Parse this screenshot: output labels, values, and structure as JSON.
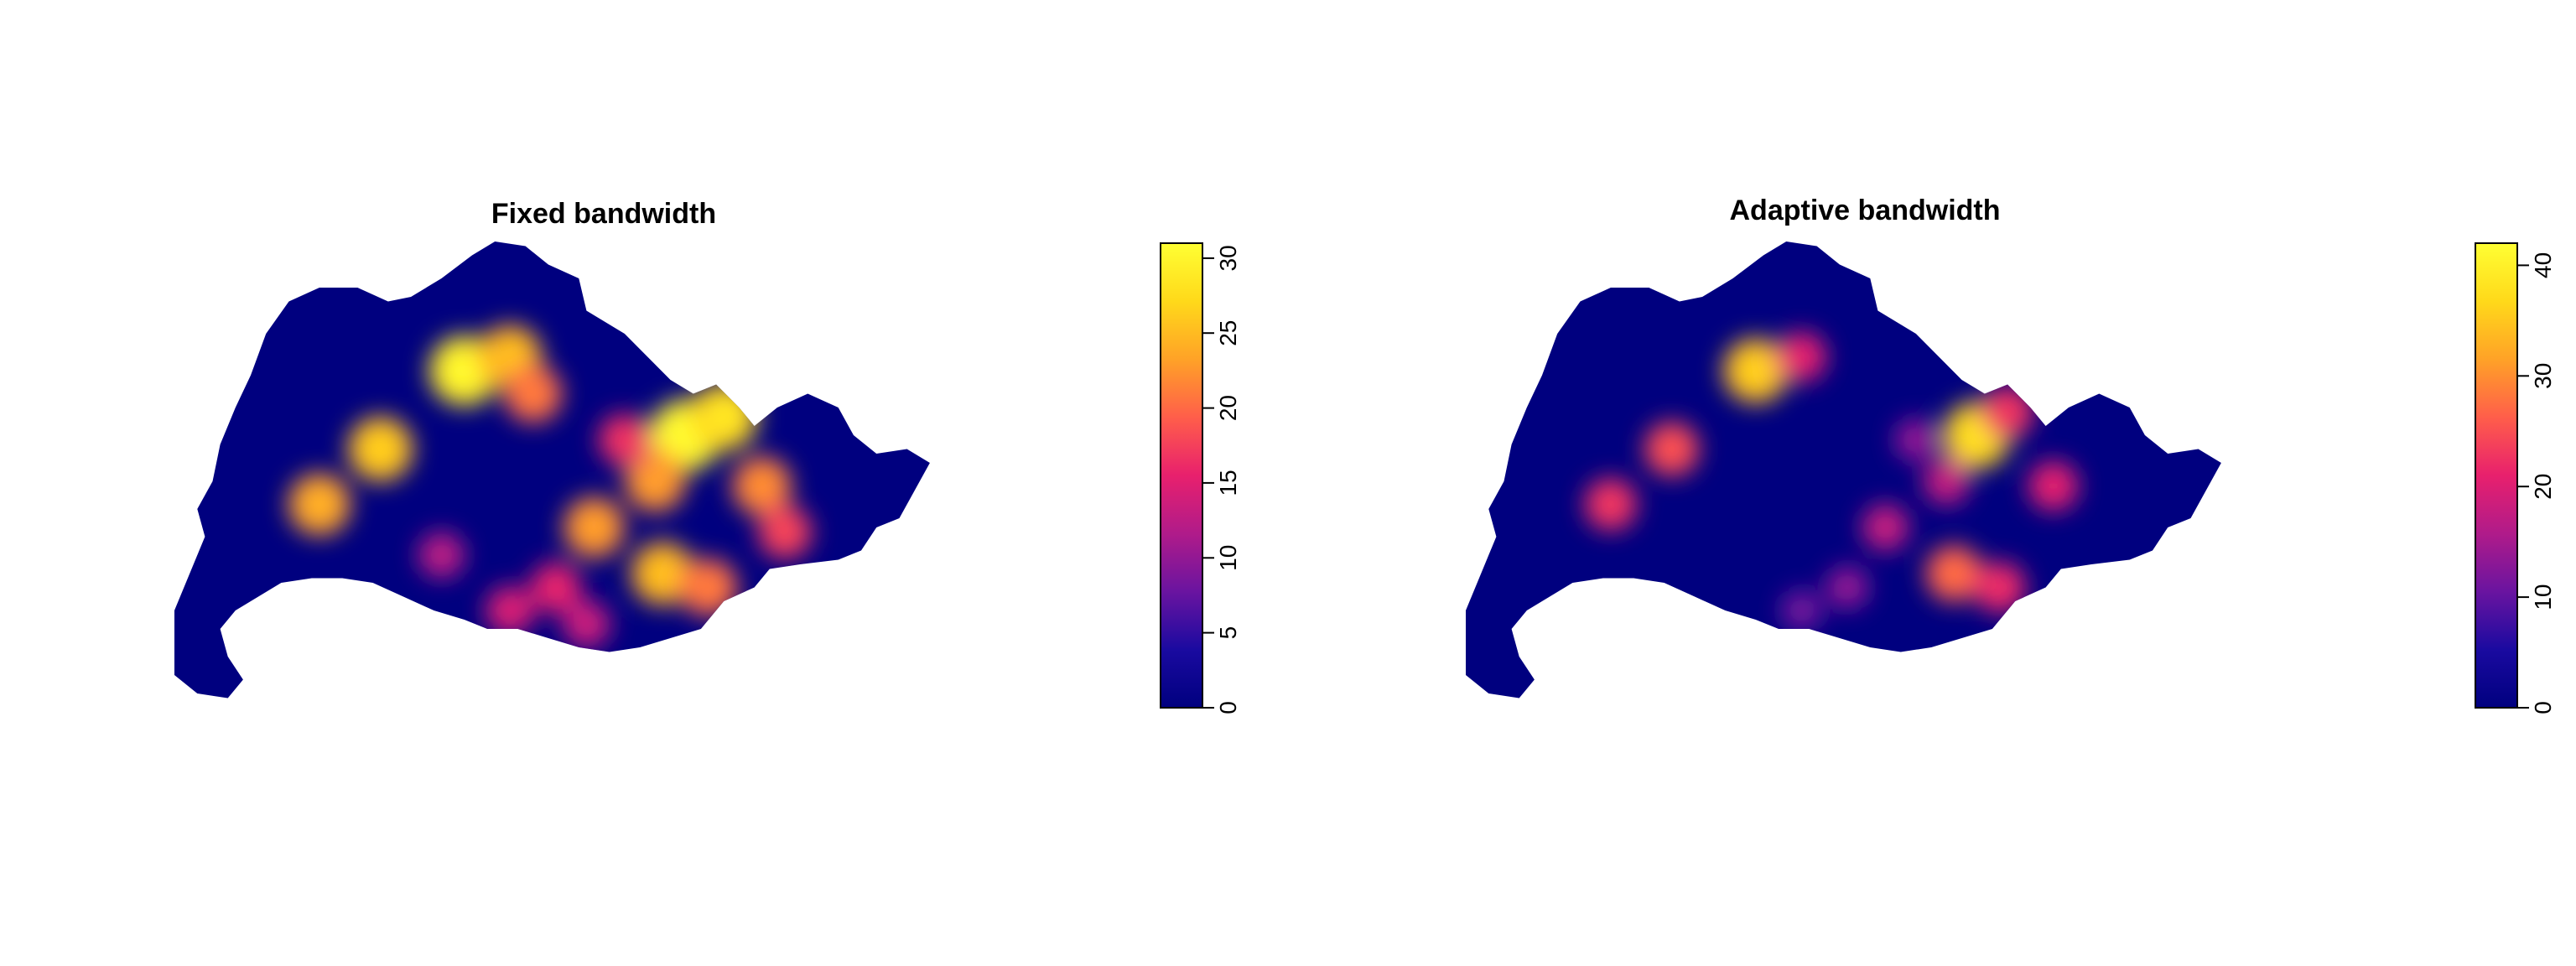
{
  "chart_data": [
    {
      "type": "heatmap",
      "title": "Fixed bandwidth",
      "color_scale": {
        "palette": "plasma",
        "range": [
          0,
          31
        ],
        "ticks": [
          0,
          5,
          10,
          15,
          20,
          25,
          30
        ],
        "stops": [
          "#00007f",
          "#1a0aa0",
          "#6a14a0",
          "#b01b8a",
          "#e8206d",
          "#ff5e4a",
          "#ffa227",
          "#ffd91a",
          "#ffff33"
        ]
      },
      "hotspots": [
        {
          "x": 0.38,
          "y": 0.28,
          "value": 29
        },
        {
          "x": 0.44,
          "y": 0.25,
          "value": 24
        },
        {
          "x": 0.47,
          "y": 0.33,
          "value": 20
        },
        {
          "x": 0.27,
          "y": 0.45,
          "value": 25
        },
        {
          "x": 0.19,
          "y": 0.57,
          "value": 23
        },
        {
          "x": 0.67,
          "y": 0.42,
          "value": 30
        },
        {
          "x": 0.72,
          "y": 0.38,
          "value": 27
        },
        {
          "x": 0.63,
          "y": 0.52,
          "value": 22
        },
        {
          "x": 0.77,
          "y": 0.53,
          "value": 21
        },
        {
          "x": 0.55,
          "y": 0.62,
          "value": 22
        },
        {
          "x": 0.64,
          "y": 0.72,
          "value": 24
        },
        {
          "x": 0.7,
          "y": 0.75,
          "value": 20
        },
        {
          "x": 0.5,
          "y": 0.75,
          "value": 15
        },
        {
          "x": 0.44,
          "y": 0.8,
          "value": 14
        },
        {
          "x": 0.54,
          "y": 0.83,
          "value": 13
        },
        {
          "x": 0.35,
          "y": 0.68,
          "value": 12
        },
        {
          "x": 0.59,
          "y": 0.43,
          "value": 16
        },
        {
          "x": 0.8,
          "y": 0.63,
          "value": 17
        }
      ]
    },
    {
      "type": "heatmap",
      "title": "Adaptive bandwidth",
      "color_scale": {
        "palette": "plasma",
        "range": [
          0,
          42
        ],
        "ticks": [
          0,
          10,
          20,
          30,
          40
        ],
        "stops": [
          "#00007f",
          "#1a0aa0",
          "#6a14a0",
          "#b01b8a",
          "#e8206d",
          "#ff5e4a",
          "#ffa227",
          "#ffd91a",
          "#ffff33"
        ]
      },
      "hotspots": [
        {
          "x": 0.38,
          "y": 0.28,
          "value": 34
        },
        {
          "x": 0.44,
          "y": 0.25,
          "value": 20
        },
        {
          "x": 0.27,
          "y": 0.45,
          "value": 24
        },
        {
          "x": 0.19,
          "y": 0.57,
          "value": 22
        },
        {
          "x": 0.67,
          "y": 0.42,
          "value": 36
        },
        {
          "x": 0.71,
          "y": 0.37,
          "value": 22
        },
        {
          "x": 0.63,
          "y": 0.52,
          "value": 17
        },
        {
          "x": 0.77,
          "y": 0.53,
          "value": 20
        },
        {
          "x": 0.55,
          "y": 0.62,
          "value": 17
        },
        {
          "x": 0.64,
          "y": 0.72,
          "value": 26
        },
        {
          "x": 0.7,
          "y": 0.75,
          "value": 21
        },
        {
          "x": 0.5,
          "y": 0.75,
          "value": 13
        },
        {
          "x": 0.44,
          "y": 0.8,
          "value": 11
        },
        {
          "x": 0.59,
          "y": 0.43,
          "value": 13
        }
      ]
    }
  ]
}
